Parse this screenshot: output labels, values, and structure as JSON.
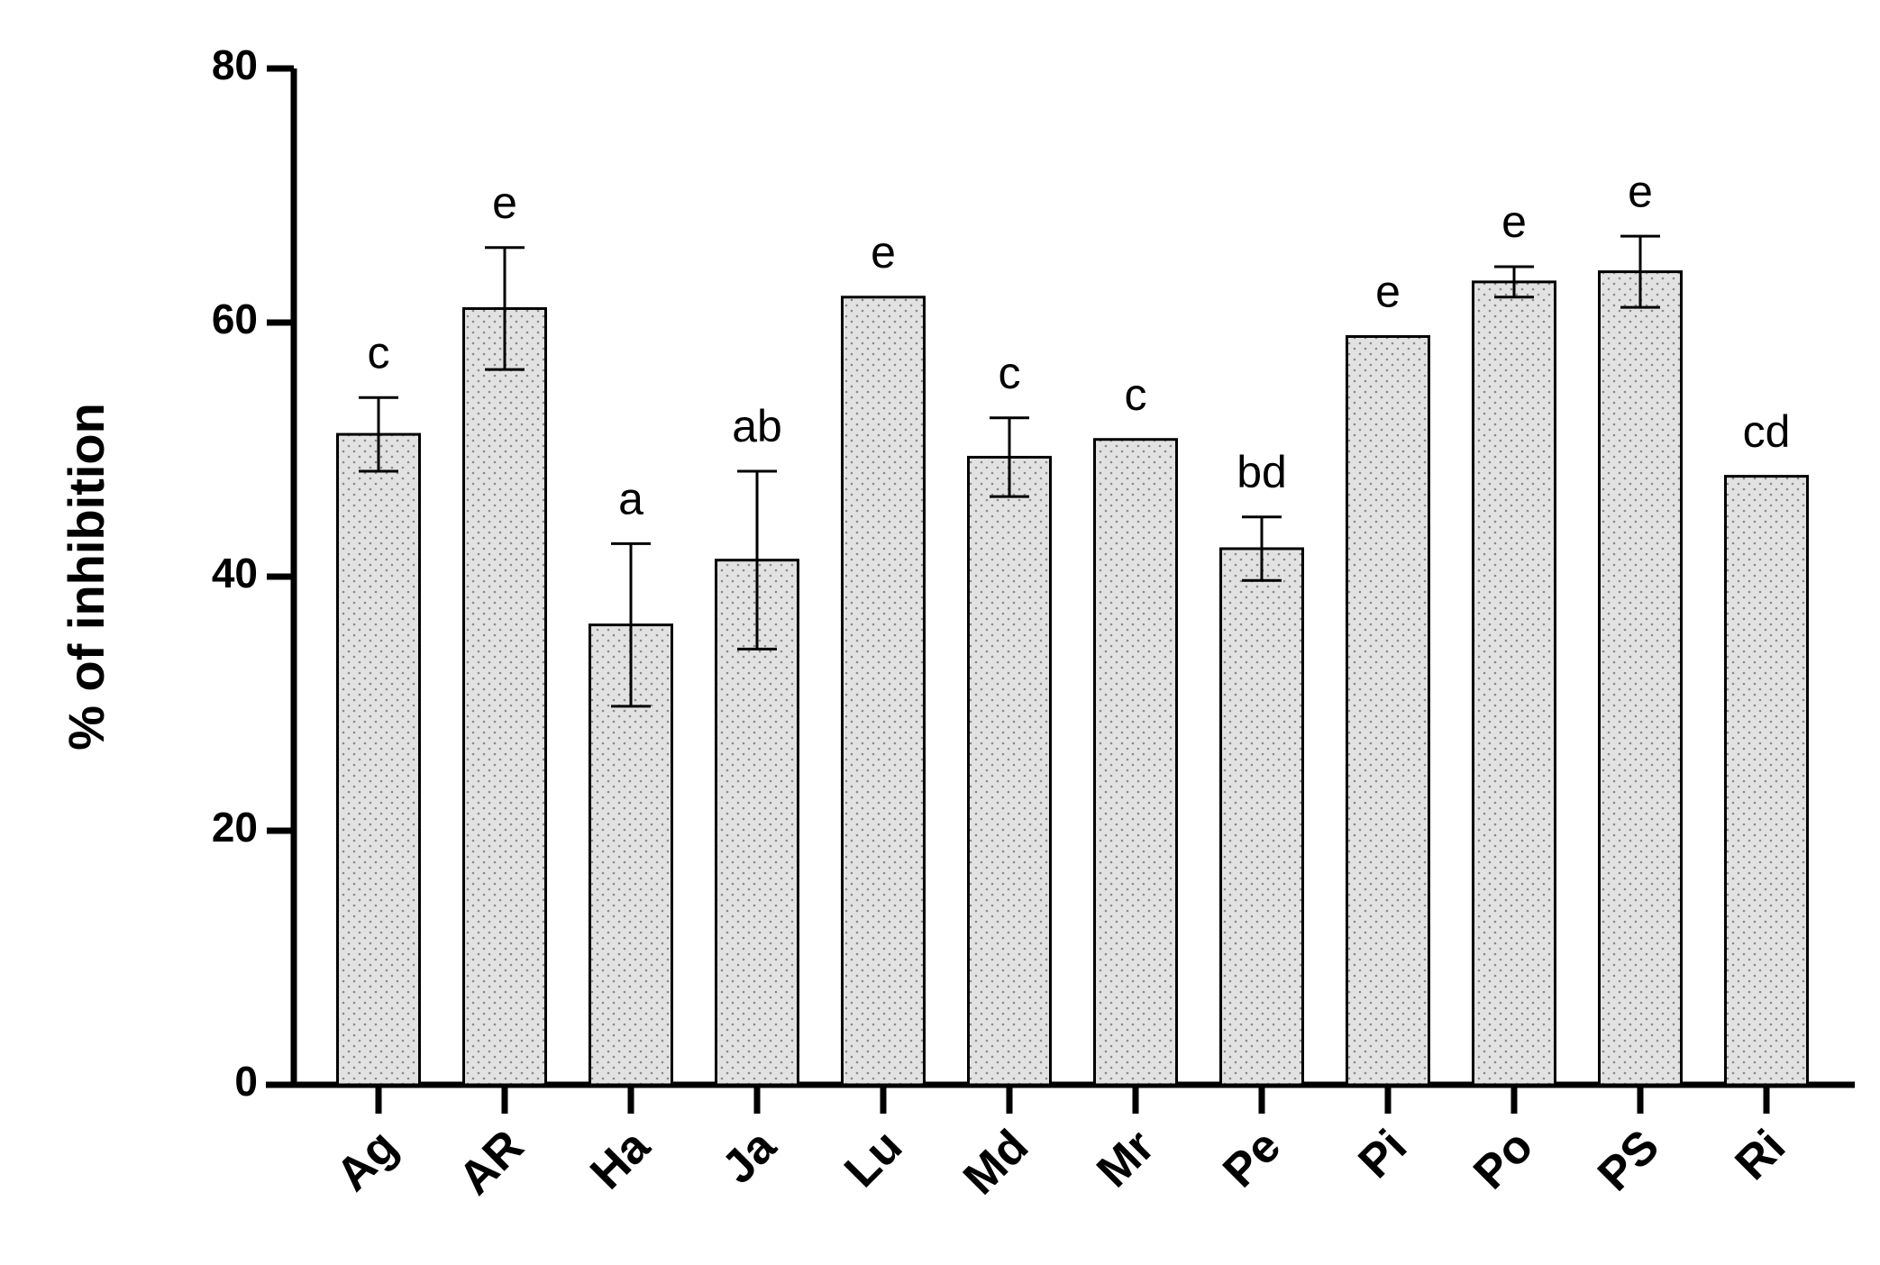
{
  "chart_data": {
    "type": "bar",
    "y_label": "% of inhibition",
    "categories": [
      "Ag",
      "AR",
      "Ha",
      "Ja",
      "Lu",
      "Md",
      "Mr",
      "Pe",
      "Pi",
      "Po",
      "PS",
      "Ri"
    ],
    "values": [
      51.2,
      61.1,
      36.2,
      41.3,
      62.0,
      49.4,
      50.8,
      42.2,
      58.9,
      63.2,
      64.0,
      47.9
    ],
    "errors": [
      2.9,
      4.8,
      6.4,
      7.0,
      null,
      3.1,
      null,
      2.5,
      null,
      1.2,
      2.8,
      null
    ],
    "annotations": [
      "c",
      "e",
      "a",
      "ab",
      "e",
      "c",
      "c",
      "bd",
      "e",
      "e",
      "e",
      "cd"
    ],
    "color": "#e2e2e2",
    "ylim": [
      0,
      80
    ],
    "yticks": [
      0,
      20,
      40,
      60,
      80
    ],
    "grid": false
  }
}
